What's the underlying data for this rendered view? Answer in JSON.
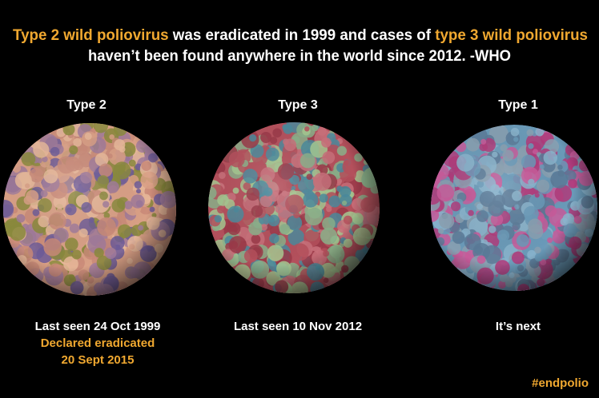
{
  "headline": {
    "line1": [
      {
        "text": "Type 2 wild poliovirus",
        "highlight": true
      },
      {
        "text": " was eradicated in 1999 and cases of ",
        "highlight": false
      },
      {
        "text": "type 3 wild poliovirus",
        "highlight": true
      }
    ],
    "line2": [
      {
        "text": "haven’t been found anywhere in the world since 2012. -WHO",
        "highlight": false
      }
    ]
  },
  "panels": [
    {
      "label": "Type 2",
      "lines": [
        {
          "text": "Last seen 24 Oct 1999",
          "highlight": false
        },
        {
          "text": "Declared eradicated",
          "highlight": true
        },
        {
          "text": "20 Sept 2015",
          "highlight": true
        }
      ]
    },
    {
      "label": "Type 3",
      "lines": [
        {
          "text": "Last seen 10 Nov 2012",
          "highlight": false
        }
      ]
    },
    {
      "label": "Type 1",
      "lines": [
        {
          "text": "It’s next",
          "highlight": false
        }
      ]
    }
  ],
  "hashtag": "#endpolio"
}
